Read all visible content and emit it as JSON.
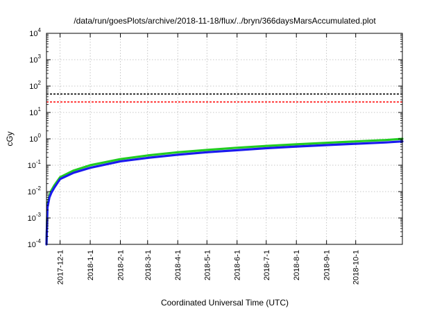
{
  "chart_data": {
    "type": "line",
    "title": "/data/run/goesPlots/archive/2018-11-18/flux/../bryn/366daysMarsAccumulated.plot",
    "xlabel": "Coordinated Universal Time (UTC)",
    "ylabel": "cGy",
    "yscale": "log",
    "ylim": [
      0.0001,
      10000
    ],
    "xlim": [
      "2017-11-17",
      "2018-11-18"
    ],
    "grid": true,
    "y_ticks": [
      {
        "base": "10",
        "exp": "-4",
        "value": 0.0001
      },
      {
        "base": "10",
        "exp": "-3",
        "value": 0.001
      },
      {
        "base": "10",
        "exp": "-2",
        "value": 0.01
      },
      {
        "base": "10",
        "exp": "-1",
        "value": 0.1
      },
      {
        "base": "10",
        "exp": "0",
        "value": 1
      },
      {
        "base": "10",
        "exp": "1",
        "value": 10
      },
      {
        "base": "10",
        "exp": "2",
        "value": 100
      },
      {
        "base": "10",
        "exp": "3",
        "value": 1000
      },
      {
        "base": "10",
        "exp": "4",
        "value": 10000
      }
    ],
    "x_ticks": [
      "2017-12-1",
      "2018-1-1",
      "2018-2-1",
      "2018-3-1",
      "2018-4-1",
      "2018-5-1",
      "2018-6-1",
      "2018-7-1",
      "2018-8-1",
      "2018-9-1",
      "2018-10-1"
    ],
    "reference_lines": [
      {
        "value": 50,
        "color": "#000000",
        "style": "dashed"
      },
      {
        "value": 25,
        "color": "#ff0000",
        "style": "dashed"
      }
    ],
    "series": [
      {
        "color": "#22cc22",
        "x": [
          "2017-11-17",
          "2017-11-18",
          "2017-11-20",
          "2017-11-22",
          "2017-11-25",
          "2017-12-1",
          "2017-12-15",
          "2018-1-1",
          "2018-2-1",
          "2018-3-1",
          "2018-4-1",
          "2018-5-1",
          "2018-6-1",
          "2018-7-1",
          "2018-8-1",
          "2018-9-1",
          "2018-10-1",
          "2018-11-1",
          "2018-11-18"
        ],
        "values": [
          0.0001,
          0.003,
          0.007,
          0.011,
          0.017,
          0.035,
          0.063,
          0.1,
          0.17,
          0.235,
          0.31,
          0.38,
          0.46,
          0.54,
          0.62,
          0.71,
          0.8,
          0.9,
          1.0
        ]
      },
      {
        "color": "#1a1aee",
        "x": [
          "2017-11-17",
          "2017-11-18",
          "2017-11-20",
          "2017-11-22",
          "2017-11-25",
          "2017-12-1",
          "2017-12-15",
          "2018-1-1",
          "2018-2-1",
          "2018-3-1",
          "2018-4-1",
          "2018-5-1",
          "2018-6-1",
          "2018-7-1",
          "2018-8-1",
          "2018-9-1",
          "2018-10-1",
          "2018-11-1",
          "2018-11-18"
        ],
        "values": [
          0.0001,
          0.0025,
          0.006,
          0.009,
          0.014,
          0.03,
          0.052,
          0.08,
          0.14,
          0.19,
          0.25,
          0.31,
          0.37,
          0.44,
          0.51,
          0.58,
          0.65,
          0.73,
          0.8
        ]
      }
    ]
  }
}
